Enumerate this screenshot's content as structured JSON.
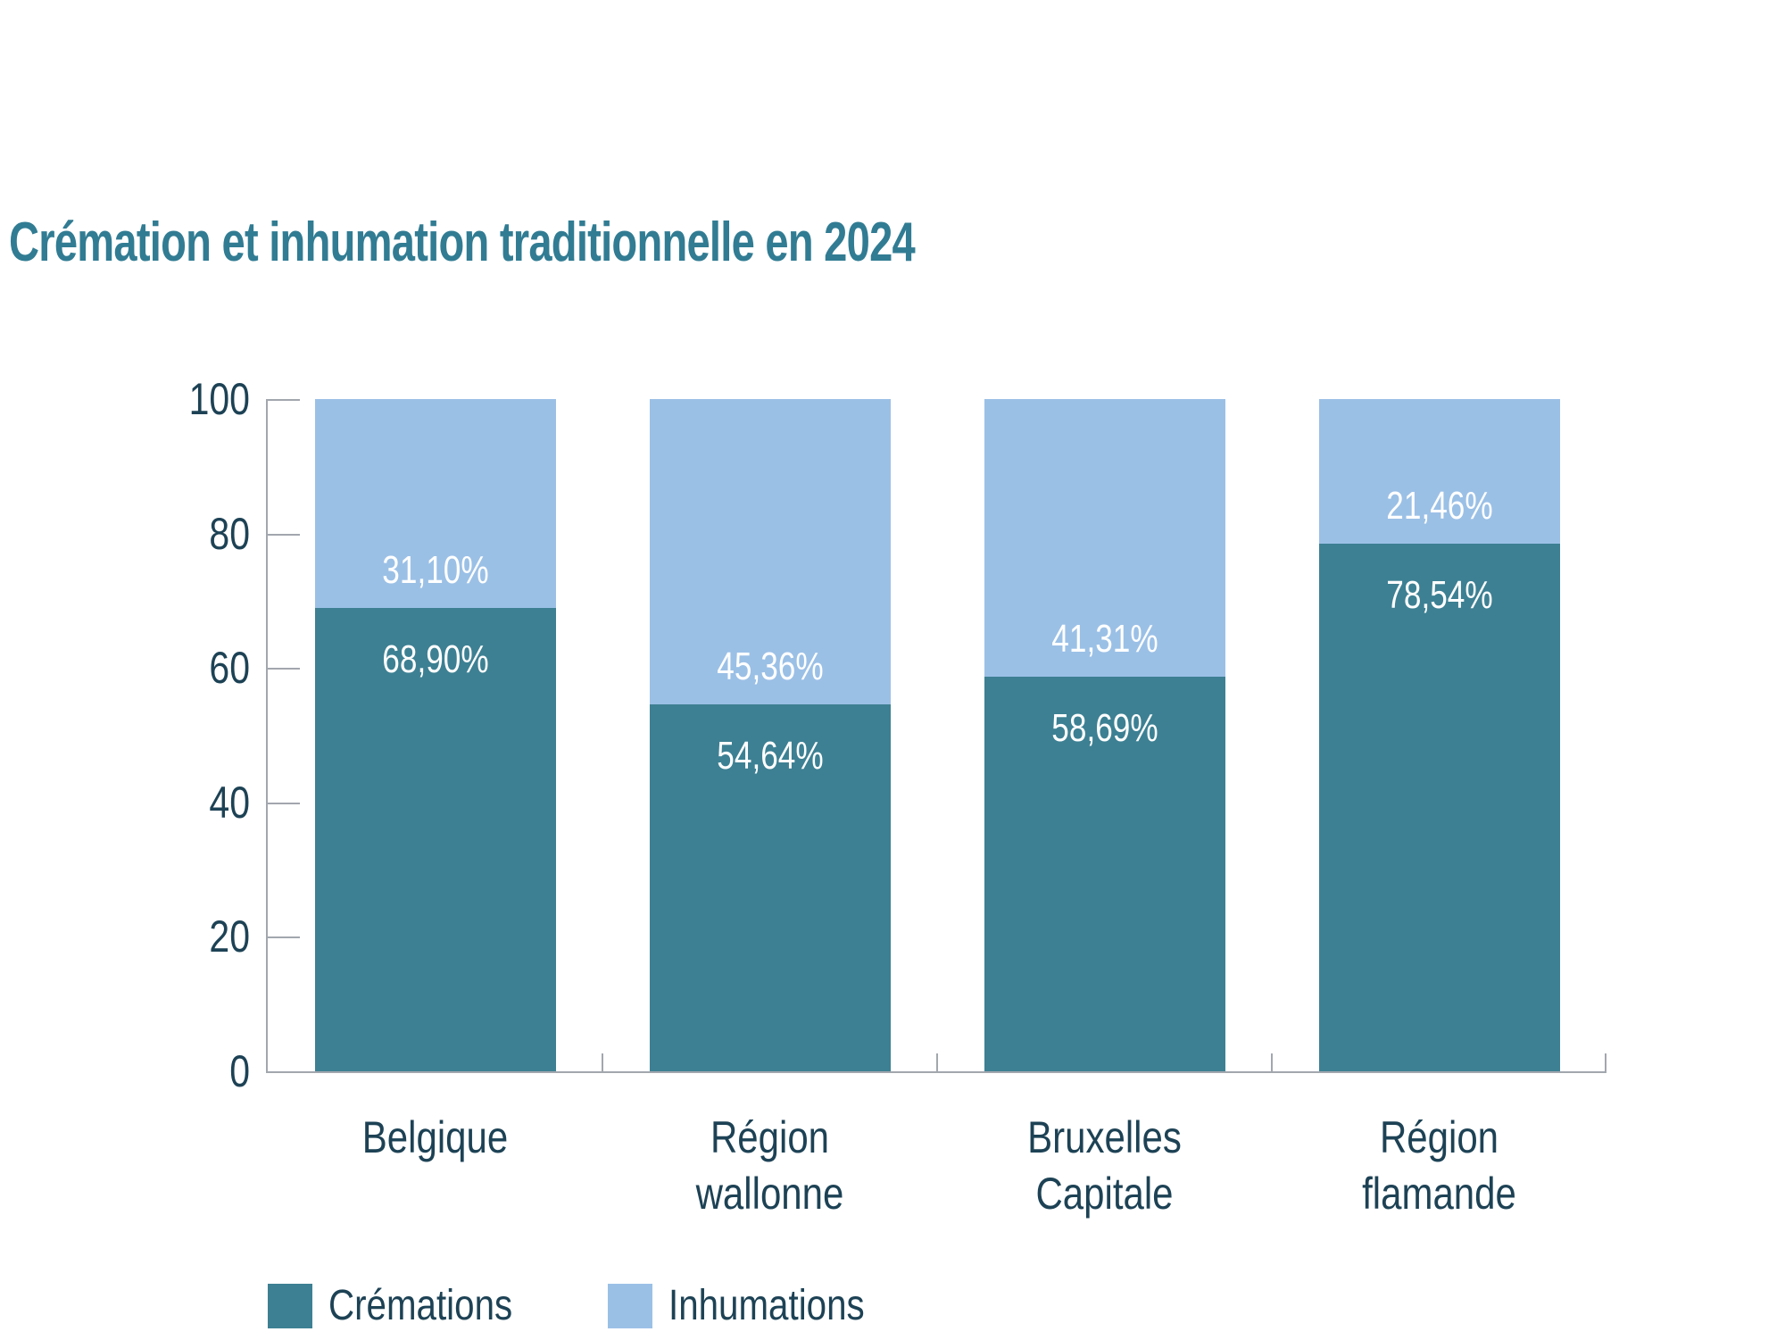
{
  "title": {
    "text": "Crémation et inhumation traditionnelle en 2024",
    "color": "#317c93"
  },
  "chart_data": {
    "type": "bar",
    "stacked": true,
    "title": "Crémation et inhumation traditionnelle en 2024",
    "categories": [
      "Belgique",
      "Région wallonne",
      "Bruxelles Capitale",
      "Région flamande"
    ],
    "category_label_lines": [
      [
        "Belgique"
      ],
      [
        "Région",
        "wallonne"
      ],
      [
        "Bruxelles",
        "Capitale"
      ],
      [
        "Région",
        "flamande"
      ]
    ],
    "series": [
      {
        "name": "Crémations",
        "color": "#3d8093",
        "values": [
          68.9,
          54.64,
          58.69,
          78.54
        ],
        "value_labels": [
          "68,90%",
          "54,64%",
          "58,69%",
          "78,54%"
        ]
      },
      {
        "name": "Inhumations",
        "color": "#9bc0e6",
        "values": [
          31.1,
          45.36,
          41.31,
          21.46
        ],
        "value_labels": [
          "31,10%",
          "45,36%",
          "41,31%",
          "21,46%"
        ]
      }
    ],
    "xlabel": "",
    "ylabel": "",
    "ylim": [
      0,
      100
    ],
    "yticks": [
      100,
      80,
      60,
      40,
      20,
      0
    ],
    "ytick_labels": [
      "100",
      "80",
      "60",
      "40",
      "20",
      "0"
    ],
    "grid": false,
    "legend_position": "bottom-left",
    "value_label_color": "#ffffff",
    "axis_color": "#a2a7ae",
    "tick_label_color": "#1d4255"
  },
  "legend": {
    "items": [
      {
        "label": "Crémations",
        "color": "#3d8093"
      },
      {
        "label": "Inhumations",
        "color": "#9bc0e6"
      }
    ]
  }
}
